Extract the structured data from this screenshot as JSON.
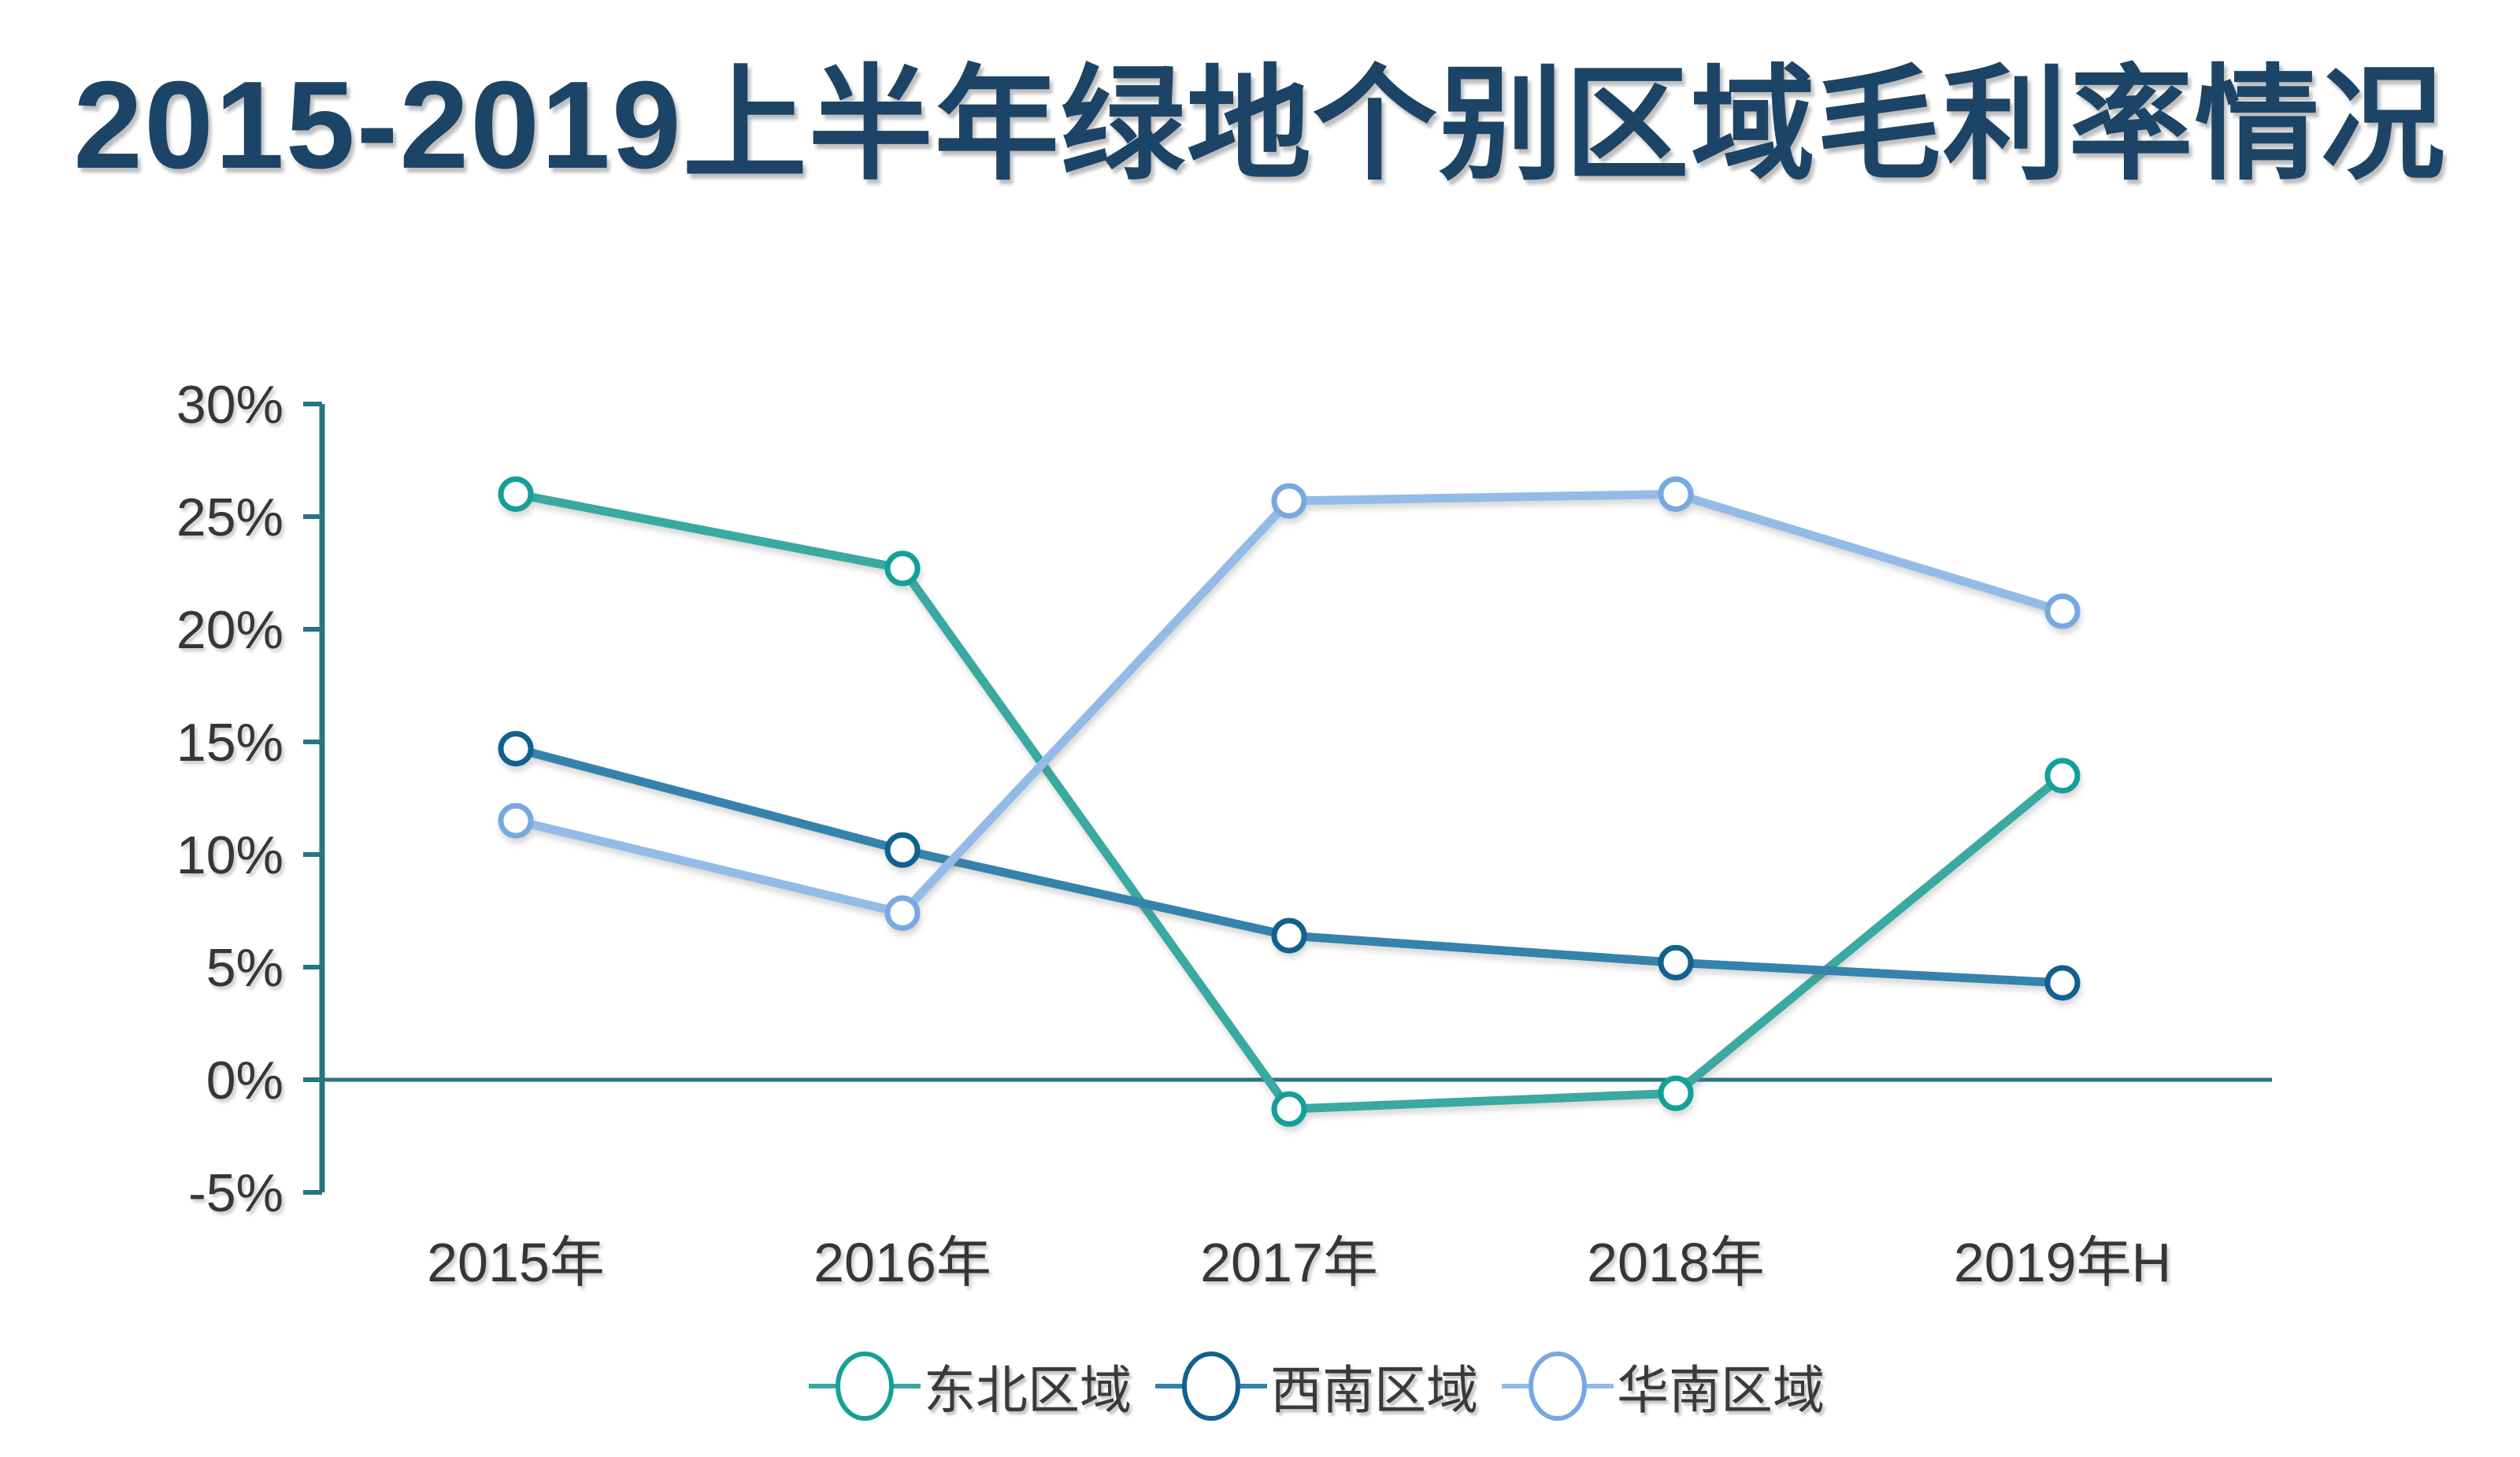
{
  "title": "2015-2019上半年绿地个别区域毛利率情况",
  "chart_data": {
    "type": "line",
    "title": "2015-2019上半年绿地个别区域毛利率情况",
    "categories": [
      "2015年",
      "2016年",
      "2017年",
      "2018年",
      "2019年H"
    ],
    "series": [
      {
        "name": "东北区域",
        "slug": "northeast",
        "values": [
          26.0,
          22.7,
          -1.3,
          -0.6,
          13.5
        ],
        "line_color": "#39a9a1",
        "marker_color": "#14a098"
      },
      {
        "name": "西南区域",
        "slug": "southwest",
        "values": [
          14.7,
          10.2,
          6.4,
          5.2,
          4.3
        ],
        "line_color": "#3583ac",
        "marker_color": "#11618f"
      },
      {
        "name": "华南区域",
        "slug": "south-china",
        "values": [
          11.5,
          7.4,
          25.7,
          26.0,
          20.8
        ],
        "line_color": "#93bbe7",
        "marker_color": "#77a9e0"
      }
    ],
    "y_ticks": [
      {
        "label": "30%",
        "value": 30
      },
      {
        "label": "25%",
        "value": 25
      },
      {
        "label": "20%",
        "value": 20
      },
      {
        "label": "15%",
        "value": 15
      },
      {
        "label": "10%",
        "value": 10
      },
      {
        "label": "5%",
        "value": 5
      },
      {
        "label": "0%",
        "value": 0
      },
      {
        "label": "-5%",
        "value": -5
      }
    ],
    "ylim": [
      -5,
      30
    ],
    "unit": "%",
    "grid": false,
    "legend_position": "bottom",
    "marker_style": "hollow-circle",
    "colors": {
      "axis": "#27767f",
      "label_text": "#363636",
      "legend_text": "#3a3a3a",
      "title_text": "#1c4466",
      "background": "#ffffff"
    }
  }
}
